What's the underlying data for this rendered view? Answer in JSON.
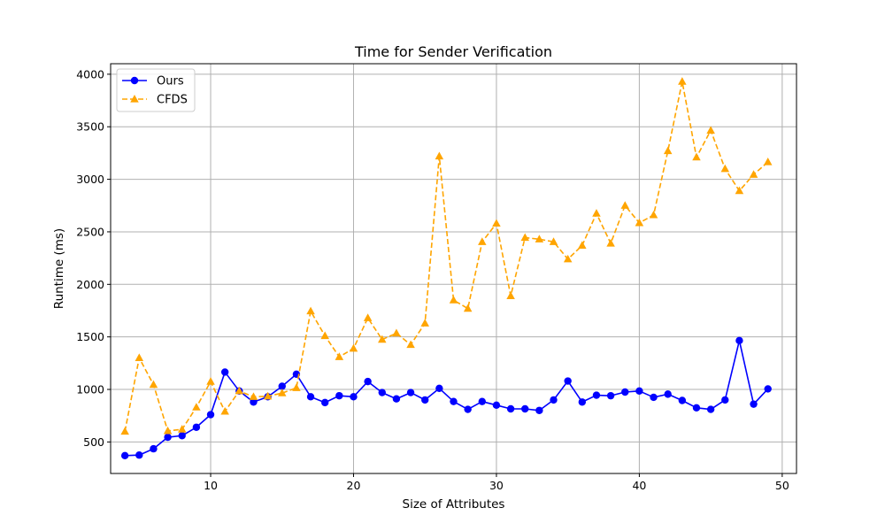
{
  "chart_data": {
    "type": "line",
    "title": "Time for Sender Verification",
    "xlabel": "Size of Attributes",
    "ylabel": "Runtime (ms)",
    "xlim": [
      3,
      51
    ],
    "ylim": [
      200,
      4100
    ],
    "xticks": [
      10,
      20,
      30,
      40,
      50
    ],
    "yticks": [
      500,
      1000,
      1500,
      2000,
      2500,
      3000,
      3500,
      4000
    ],
    "grid": true,
    "legend_position": "top-left",
    "x": [
      4,
      5,
      6,
      7,
      8,
      9,
      10,
      11,
      12,
      13,
      14,
      15,
      16,
      17,
      18,
      19,
      20,
      21,
      22,
      23,
      24,
      25,
      26,
      27,
      28,
      29,
      30,
      31,
      32,
      33,
      34,
      35,
      36,
      37,
      38,
      39,
      40,
      41,
      42,
      43,
      44,
      45,
      46,
      47,
      48,
      49
    ],
    "series": [
      {
        "name": "Ours",
        "color": "#0000ff",
        "line_style": "solid",
        "marker": "circle",
        "values": [
          370,
          375,
          435,
          545,
          560,
          640,
          760,
          1165,
          985,
          880,
          930,
          1030,
          1145,
          930,
          875,
          940,
          930,
          1075,
          970,
          910,
          970,
          900,
          1010,
          885,
          810,
          885,
          850,
          815,
          815,
          800,
          900,
          1080,
          880,
          945,
          940,
          975,
          985,
          925,
          955,
          895,
          825,
          810,
          900,
          1465,
          860,
          1005
        ]
      },
      {
        "name": "CFDS",
        "color": "#ffa500",
        "line_style": "dashed",
        "marker": "triangle",
        "values": [
          600,
          1300,
          1045,
          605,
          620,
          830,
          1075,
          790,
          985,
          930,
          935,
          965,
          1015,
          1745,
          1510,
          1310,
          1390,
          1680,
          1475,
          1535,
          1425,
          1630,
          3220,
          1850,
          1770,
          2405,
          2580,
          1890,
          2445,
          2430,
          2405,
          2240,
          2370,
          2675,
          2390,
          2750,
          2585,
          2660,
          3270,
          3930,
          3210,
          3465,
          3100,
          2890,
          3045,
          3165
        ]
      }
    ]
  }
}
